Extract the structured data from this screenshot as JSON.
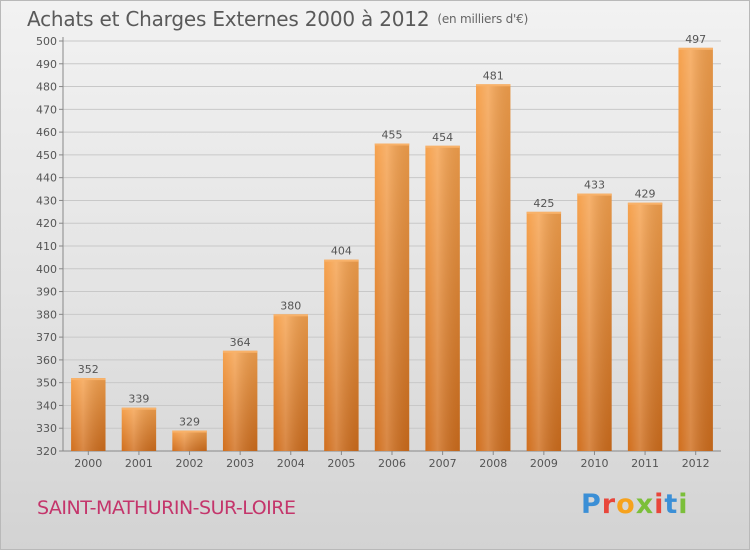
{
  "header": {
    "title": "Achats et Charges Externes 2000 à 2012",
    "subtitle": "(en milliers d'€)"
  },
  "footer": {
    "commune": "SAINT-MATHURIN-SUR-LOIRE",
    "brand": "Proxiti",
    "brand_colors": [
      "#3b8fd6",
      "#e8463b",
      "#f6a21d",
      "#7bbf3a",
      "#e8463b",
      "#3b8fd6",
      "#7bbf3a"
    ]
  },
  "colors": {
    "bar": "#f0983f",
    "bar_dark": "#d6731f",
    "axis": "#888888",
    "grid": "#c8c8c8",
    "text": "#555555"
  },
  "chart_data": {
    "type": "bar",
    "categories": [
      "2000",
      "2001",
      "2002",
      "2003",
      "2004",
      "2005",
      "2006",
      "2007",
      "2008",
      "2009",
      "2010",
      "2011",
      "2012"
    ],
    "values": [
      352,
      339,
      329,
      364,
      380,
      404,
      455,
      454,
      481,
      425,
      433,
      429,
      497
    ],
    "title": "Achats et Charges Externes 2000 à 2012",
    "subtitle": "(en milliers d'€)",
    "xlabel": "",
    "ylabel": "",
    "ylim": [
      320,
      500
    ],
    "yticks": [
      320,
      330,
      340,
      350,
      360,
      370,
      380,
      390,
      400,
      410,
      420,
      430,
      440,
      450,
      460,
      470,
      480,
      490,
      500
    ],
    "grid": true,
    "data_labels": true
  }
}
